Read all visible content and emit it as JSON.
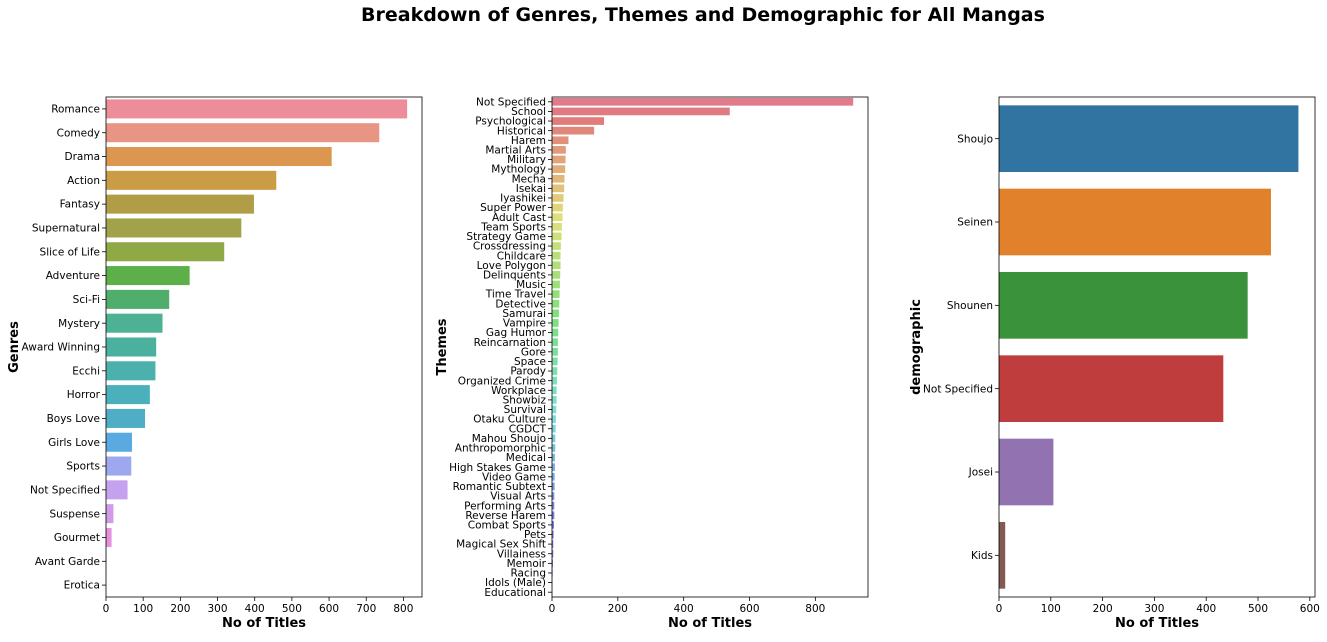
{
  "figure": {
    "title": "Breakdown of Genres, Themes and Demographic for All Mangas"
  },
  "chart_data": [
    {
      "type": "bar",
      "orientation": "horizontal",
      "xlabel": "No of Titles",
      "ylabel": "Genres",
      "xlim": [
        0,
        850
      ],
      "xticks": [
        0,
        100,
        200,
        300,
        400,
        500,
        600,
        700,
        800
      ],
      "categories": [
        "Romance",
        "Comedy",
        "Drama",
        "Action",
        "Fantasy",
        "Supernatural",
        "Slice of Life",
        "Adventure",
        "Sci-Fi",
        "Mystery",
        "Award Winning",
        "Ecchi",
        "Horror",
        "Boys Love",
        "Girls Love",
        "Sports",
        "Not Specified",
        "Suspense",
        "Gourmet",
        "Avant Garde",
        "Erotica"
      ],
      "values": [
        810,
        735,
        607,
        458,
        398,
        364,
        318,
        225,
        170,
        152,
        135,
        133,
        118,
        105,
        70,
        68,
        58,
        20,
        15,
        1,
        0
      ],
      "colors": [
        "#ee8d9a",
        "#e99584",
        "#db9750",
        "#c99c45",
        "#b19d45",
        "#a2a24a",
        "#8fa946",
        "#5daf4a",
        "#4fae6b",
        "#4db193",
        "#4bb19e",
        "#4cb0ac",
        "#4ab0bb",
        "#50adc6",
        "#5aa9e0",
        "#9ea8ee",
        "#c5a2ee",
        "#d29bea",
        "#e691dd",
        "#ea8fc8",
        "#eb8fb0"
      ],
      "grid": false
    },
    {
      "type": "bar",
      "orientation": "horizontal",
      "xlabel": "No of Titles",
      "ylabel": "Themes",
      "xlim": [
        0,
        960
      ],
      "xticks": [
        0,
        200,
        400,
        600,
        800
      ],
      "categories": [
        "Not Specified",
        "School",
        "Psychological",
        "Historical",
        "Harem",
        "Martial Arts",
        "Military",
        "Mythology",
        "Mecha",
        "Isekai",
        "Iyashikei",
        "Super Power",
        "Adult Cast",
        "Team Sports",
        "Strategy Game",
        "Crossdressing",
        "Childcare",
        "Love Polygon",
        "Delinquents",
        "Music",
        "Time Travel",
        "Detective",
        "Samurai",
        "Vampire",
        "Gag Humor",
        "Reincarnation",
        "Gore",
        "Space",
        "Parody",
        "Organized Crime",
        "Workplace",
        "Showbiz",
        "Survival",
        "Otaku Culture",
        "CGDCT",
        "Mahou Shoujo",
        "Anthropomorphic",
        "Medical",
        "High Stakes Game",
        "Video Game",
        "Romantic Subtext",
        "Visual Arts",
        "Performing Arts",
        "Reverse Harem",
        "Combat Sports",
        "Pets",
        "Magical Sex Shift",
        "Villainess",
        "Memoir",
        "Racing",
        "Idols (Male)",
        "Educational"
      ],
      "values": [
        915,
        540,
        158,
        128,
        50,
        42,
        41,
        40,
        38,
        37,
        35,
        33,
        32,
        30,
        29,
        27,
        26,
        26,
        25,
        24,
        23,
        22,
        21,
        20,
        19,
        18,
        18,
        17,
        16,
        15,
        14,
        14,
        13,
        12,
        11,
        10,
        10,
        9,
        9,
        8,
        8,
        7,
        7,
        7,
        6,
        5,
        4,
        4,
        3,
        2,
        1,
        1
      ],
      "grid": false
    },
    {
      "type": "bar",
      "orientation": "horizontal",
      "xlabel": "No of Titles",
      "ylabel": "demographic",
      "xlim": [
        0,
        610
      ],
      "xticks": [
        0,
        100,
        200,
        300,
        400,
        500,
        600
      ],
      "categories": [
        "Shoujo",
        "Seinen",
        "Shounen",
        "Not Specified",
        "Josei",
        "Kids"
      ],
      "values": [
        578,
        525,
        480,
        433,
        105,
        12
      ],
      "colors": [
        "#3274a1",
        "#e1812c",
        "#3a923a",
        "#c03d3e",
        "#9372b2",
        "#845b53"
      ],
      "grid": false
    }
  ]
}
